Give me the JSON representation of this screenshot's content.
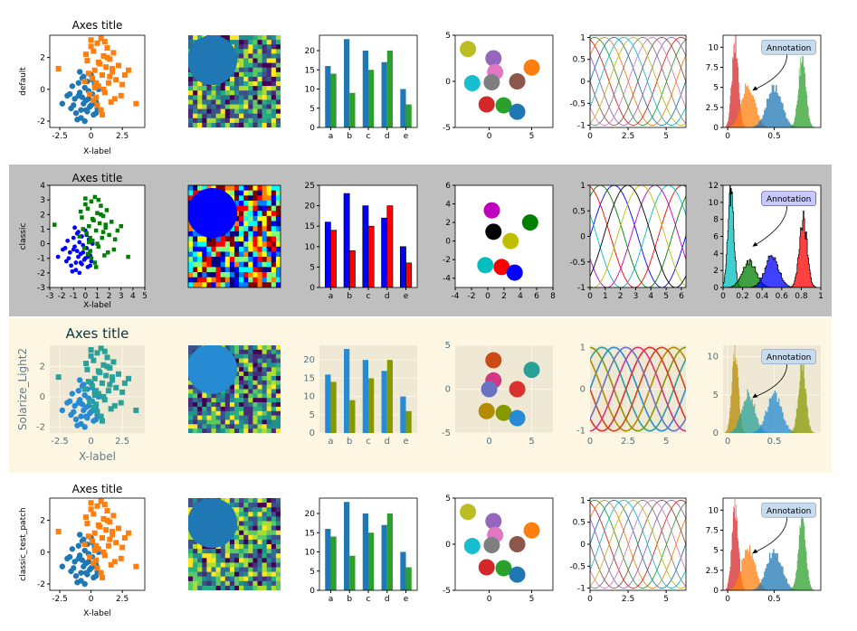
{
  "styles": [
    {
      "name": "default",
      "axes_title": "Axes title",
      "xlabel": "X-label",
      "palette": [
        "#1f77b4",
        "#ff7f0e",
        "#2ca02c",
        "#d62728",
        "#9467bd",
        "#8c564b",
        "#e377c2",
        "#7f7f7f",
        "#bcbd22",
        "#17becf"
      ],
      "bg": "#ffffff",
      "axes_bg": "#ffffff",
      "frame": "#000000",
      "tick_color": "#000000",
      "label_color": "#000000",
      "grid": false
    },
    {
      "name": "classic",
      "axes_title": "Axes title",
      "xlabel": "X-label",
      "palette": [
        "#0000ff",
        "#008000",
        "#ff0000",
        "#00bfbf",
        "#bf00bf",
        "#bfbf00",
        "#000000"
      ],
      "bg": "#bfbfbf",
      "axes_bg": "#ffffff",
      "frame": "#000000",
      "tick_color": "#000000",
      "label_color": "#000000",
      "grid": false
    },
    {
      "name": "Solarize_Light2",
      "axes_title": "Axes title",
      "xlabel": "X-label",
      "palette": [
        "#268BD2",
        "#2AA198",
        "#859900",
        "#B58900",
        "#CB4B16",
        "#DC322F",
        "#D33682",
        "#6C71C4"
      ],
      "bg": "#FDF6E3",
      "axes_bg": "#EEE8D5",
      "frame": "#EEE8D5",
      "tick_color": "#586e75",
      "label_color": "#657b83",
      "grid": true
    },
    {
      "name": "classic_test_patch",
      "axes_title": "Axes title",
      "xlabel": "X-label",
      "palette": [
        "#1f77b4",
        "#ff7f0e",
        "#2ca02c",
        "#d62728",
        "#9467bd",
        "#8c564b",
        "#e377c2",
        "#7f7f7f",
        "#bcbd22",
        "#17becf"
      ],
      "bg": "#ffffff",
      "axes_bg": "#ffffff",
      "frame": "#000000",
      "tick_color": "#000000",
      "label_color": "#000000",
      "grid": false
    }
  ],
  "chart_data": [
    {
      "type": "scatter",
      "title": "Axes title",
      "xlabel": "X-label",
      "series": [
        {
          "marker": "circle",
          "x": [
            -2.3,
            -1.9,
            -1.6,
            -1.5,
            -1.3,
            -1.2,
            -1.0,
            -0.9,
            -0.8,
            -0.7,
            -0.6,
            -0.5,
            -0.4,
            -0.3,
            -0.2,
            -0.1,
            0.0,
            0.1,
            0.2,
            0.3,
            0.4,
            0.5,
            0.6,
            -1.1,
            -0.7,
            -0.3,
            0.1,
            -0.5,
            -1.4,
            -0.9,
            0.2,
            -0.2,
            0.4,
            -0.6,
            -1.7,
            -0.4,
            0.0,
            -0.8,
            0.3,
            -1.0
          ],
          "y": [
            -0.9,
            -0.4,
            -1.2,
            0.2,
            -0.6,
            -1.5,
            0.4,
            -0.2,
            -1.8,
            0.7,
            -0.9,
            0.1,
            -1.3,
            0.5,
            -0.6,
            -1.1,
            0.9,
            -0.3,
            -1.6,
            0.3,
            -0.8,
            -1.2,
            0.0,
            -1.9,
            -0.5,
            -1.4,
            0.6,
            -2.0,
            -1.0,
            1.1,
            -0.9,
            -0.1,
            -1.5,
            0.8,
            -0.3,
            -0.7,
            -1.0,
            -1.3,
            0.2,
            -0.4
          ]
        },
        {
          "marker": "square",
          "x": [
            -2.6,
            -0.5,
            -0.3,
            -0.1,
            0.0,
            0.1,
            0.2,
            0.3,
            0.4,
            0.5,
            0.6,
            0.7,
            0.8,
            0.9,
            1.0,
            1.1,
            1.2,
            1.3,
            1.4,
            1.5,
            1.6,
            1.7,
            1.8,
            2.0,
            2.2,
            2.4,
            2.7,
            3.0,
            3.6,
            0.0,
            0.5,
            1.0,
            -0.2,
            0.8,
            1.5,
            0.3,
            1.9,
            0.6,
            1.3,
            -0.4,
            2.5,
            1.1,
            0.2,
            0.9,
            1.7,
            0.4
          ],
          "y": [
            1.3,
            0.5,
            1.8,
            -0.3,
            3.1,
            0.7,
            2.4,
            1.2,
            -0.5,
            2.9,
            0.2,
            1.6,
            3.2,
            0.9,
            2.1,
            -0.2,
            1.4,
            2.6,
            0.4,
            1.9,
            -0.8,
            1.1,
            2.3,
            0.6,
            1.5,
            -0.4,
            0.9,
            1.2,
            -0.9,
            2.7,
            -1.0,
            0.0,
            1.0,
            -1.3,
            0.8,
            0.1,
            -0.6,
            1.7,
            2.0,
            2.2,
            0.3,
            3.0,
            -0.7,
            -1.6,
            1.3,
            0.4
          ]
        }
      ],
      "xticks": [
        -2.5,
        0.0,
        2.5
      ],
      "yticks": [
        -2,
        0,
        2
      ],
      "xlim": [
        -3.3,
        4.3
      ],
      "ylim": [
        -2.4,
        3.4
      ]
    },
    {
      "type": "heatmap",
      "rows": 20,
      "cols": 20,
      "note": "random matrix with overlaid filled circle"
    },
    {
      "type": "bar",
      "categories": [
        "a",
        "b",
        "c",
        "d",
        "e"
      ],
      "series": [
        {
          "values": [
            16,
            23,
            20,
            17,
            10
          ]
        },
        {
          "values": [
            14,
            9,
            15,
            20,
            6
          ]
        }
      ],
      "yticks": [
        0,
        5,
        10,
        15,
        20
      ],
      "ylim": [
        0,
        24
      ]
    },
    {
      "type": "scatter",
      "circles": [
        {
          "x": -2.5,
          "y": 3.5
        },
        {
          "x": 0.5,
          "y": 2.5
        },
        {
          "x": 5.0,
          "y": 1.5
        },
        {
          "x": 0.7,
          "y": 1.0
        },
        {
          "x": -2.0,
          "y": -0.2
        },
        {
          "x": 0.3,
          "y": -0.1
        },
        {
          "x": 3.3,
          "y": 0.0
        },
        {
          "x": -0.3,
          "y": -2.5
        },
        {
          "x": 1.7,
          "y": -2.6
        },
        {
          "x": 3.3,
          "y": -3.3
        }
      ],
      "xticks": [
        0,
        5
      ],
      "yticks": [
        -5,
        0,
        5
      ],
      "xlim": [
        -4.0,
        7.5
      ],
      "ylim": [
        -5,
        5
      ]
    },
    {
      "type": "line",
      "function": "sin(x + phase)",
      "n_series": 10,
      "xticks": [
        0.0,
        2.5,
        5.0
      ],
      "yticks": [
        -1.0,
        -0.5,
        0.0,
        0.5,
        1.0
      ],
      "xlim": [
        0,
        6.3
      ],
      "ylim": [
        -1.05,
        1.05
      ]
    },
    {
      "type": "area",
      "annotation": "Annotation",
      "xticks": [
        0.0,
        0.5
      ],
      "yticks": [
        0.0,
        2.5,
        5.0,
        7.5,
        10.0
      ],
      "xlim": [
        -0.05,
        1.0
      ],
      "ylim": [
        0,
        11.5
      ],
      "distributions": [
        {
          "mean": 0.08,
          "sd": 0.035,
          "peak": 10.5
        },
        {
          "mean": 0.22,
          "sd": 0.07,
          "peak": 5.3
        },
        {
          "mean": 0.5,
          "sd": 0.08,
          "peak": 5.0
        },
        {
          "mean": 0.8,
          "sd": 0.04,
          "peak": 8.8
        }
      ]
    }
  ]
}
